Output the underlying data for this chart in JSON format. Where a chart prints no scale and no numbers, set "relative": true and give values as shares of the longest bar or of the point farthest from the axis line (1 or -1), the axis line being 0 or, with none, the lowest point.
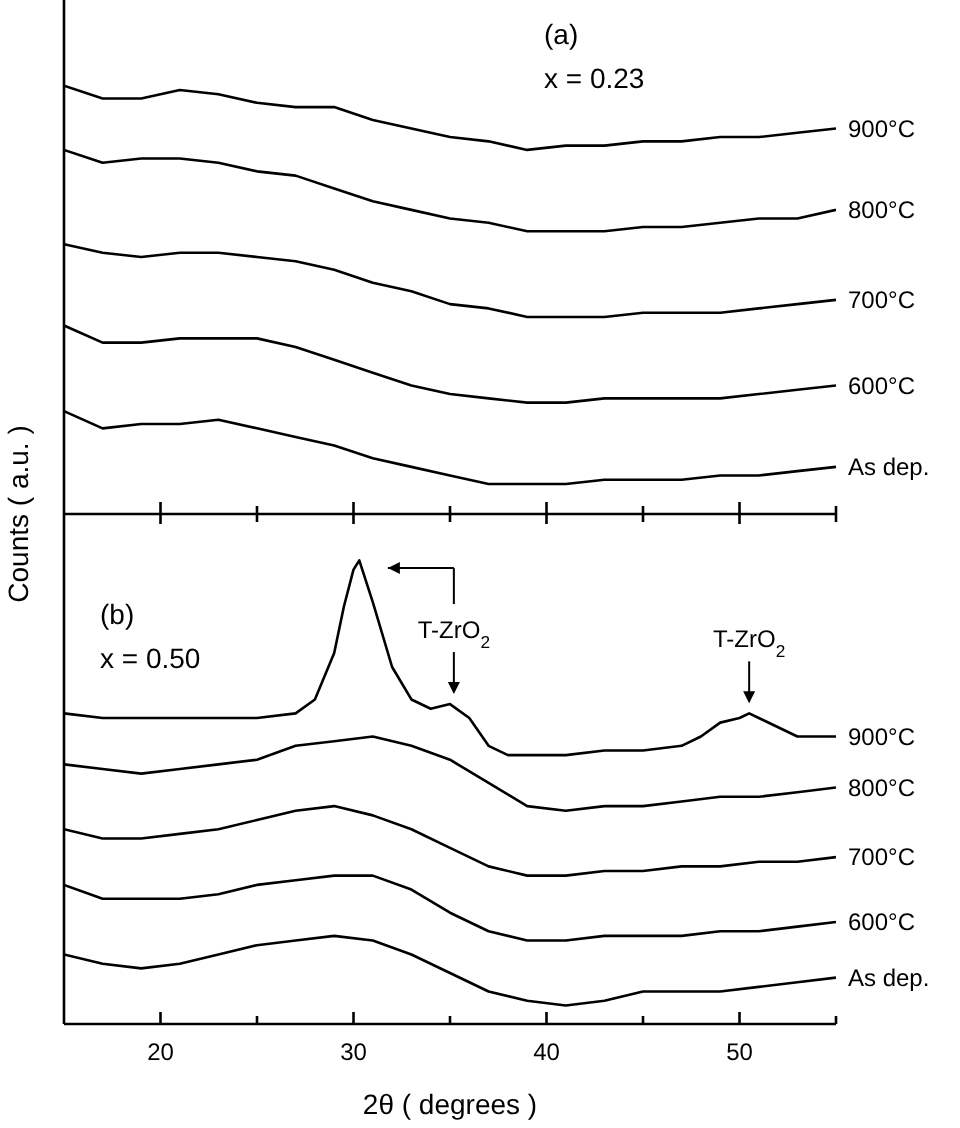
{
  "chart_data": [
    {
      "type": "line",
      "relative": true,
      "annotations": [
        "(a)",
        "x = 0.23"
      ],
      "xlim": [
        15,
        55
      ],
      "xticks": [
        {
          "value": 20,
          "label": null
        },
        {
          "value": 25,
          "label": null
        },
        {
          "value": 30,
          "label": null
        },
        {
          "value": 35,
          "label": null
        },
        {
          "value": 40,
          "label": null
        },
        {
          "value": 45,
          "label": null
        },
        {
          "value": 50,
          "label": null
        },
        {
          "value": 55,
          "label": null
        }
      ],
      "tick_labels": false,
      "x": [
        15,
        17,
        19,
        21,
        23,
        25,
        27,
        29,
        31,
        33,
        35,
        37,
        39,
        41,
        43,
        45,
        47,
        49,
        51,
        53,
        55
      ],
      "series": [
        {
          "name": "900°C",
          "color": "#000000",
          "values": [
            1.0,
            0.97,
            0.97,
            0.99,
            0.98,
            0.96,
            0.95,
            0.95,
            0.92,
            0.9,
            0.88,
            0.87,
            0.85,
            0.86,
            0.86,
            0.87,
            0.87,
            0.88,
            0.88,
            0.89,
            0.9
          ]
        },
        {
          "name": "800°C",
          "color": "#000000",
          "values": [
            0.85,
            0.82,
            0.83,
            0.83,
            0.82,
            0.8,
            0.79,
            0.76,
            0.73,
            0.71,
            0.69,
            0.68,
            0.66,
            0.66,
            0.66,
            0.67,
            0.67,
            0.68,
            0.69,
            0.69,
            0.71
          ]
        },
        {
          "name": "700°C",
          "color": "#000000",
          "values": [
            0.63,
            0.61,
            0.6,
            0.61,
            0.61,
            0.6,
            0.59,
            0.57,
            0.54,
            0.52,
            0.49,
            0.48,
            0.46,
            0.46,
            0.46,
            0.47,
            0.47,
            0.47,
            0.48,
            0.49,
            0.5
          ]
        },
        {
          "name": "600°C",
          "color": "#000000",
          "values": [
            0.44,
            0.4,
            0.4,
            0.41,
            0.41,
            0.41,
            0.39,
            0.36,
            0.33,
            0.3,
            0.28,
            0.27,
            0.26,
            0.26,
            0.27,
            0.27,
            0.27,
            0.27,
            0.28,
            0.29,
            0.3
          ]
        },
        {
          "name": "As dep.",
          "color": "#000000",
          "values": [
            0.24,
            0.2,
            0.21,
            0.21,
            0.22,
            0.2,
            0.18,
            0.16,
            0.13,
            0.11,
            0.09,
            0.07,
            0.07,
            0.07,
            0.08,
            0.08,
            0.08,
            0.09,
            0.09,
            0.1,
            0.11
          ]
        }
      ]
    },
    {
      "type": "line",
      "relative": true,
      "xlabel": "2θ ( degrees )",
      "ylabel": "Counts  ( a.u. )",
      "annotations": [
        "(b)",
        "x = 0.50",
        {
          "text": "T-ZrO$_{2}$",
          "x": 35.2,
          "y": 0.69
        },
        {
          "text": "T-ZrO$_{2}$",
          "x": 50.5,
          "y": 0.67
        }
      ],
      "xlim": [
        15,
        55
      ],
      "xticks": [
        20,
        {
          "value": 25,
          "label": null
        },
        30,
        {
          "value": 35,
          "label": null
        },
        40,
        {
          "value": 45,
          "label": null
        },
        50,
        {
          "value": 55,
          "label": null
        }
      ],
      "tick_labels": "x",
      "x": [
        15,
        17,
        19,
        21,
        23,
        25,
        27,
        29,
        31,
        33,
        35,
        37,
        39,
        41,
        43,
        45,
        47,
        49,
        51,
        53,
        55
      ],
      "series": [
        {
          "name": "900°C",
          "color": "#000000",
          "x": [
            15,
            17,
            19,
            21,
            23,
            25,
            27,
            28,
            29,
            29.5,
            30,
            30.3,
            31,
            32,
            33,
            34,
            35,
            36,
            37,
            38,
            39,
            41,
            43,
            45,
            47,
            48,
            49,
            50,
            50.5,
            51,
            52,
            53,
            55
          ],
          "values": [
            0.67,
            0.66,
            0.66,
            0.66,
            0.66,
            0.66,
            0.67,
            0.7,
            0.8,
            0.9,
            0.98,
            1.0,
            0.91,
            0.77,
            0.7,
            0.68,
            0.69,
            0.66,
            0.6,
            0.58,
            0.58,
            0.58,
            0.59,
            0.59,
            0.6,
            0.62,
            0.65,
            0.66,
            0.67,
            0.66,
            0.64,
            0.62,
            0.62
          ]
        },
        {
          "name": "800°C",
          "color": "#000000",
          "values": [
            0.56,
            0.55,
            0.54,
            0.55,
            0.56,
            0.57,
            0.6,
            0.61,
            0.62,
            0.6,
            0.57,
            0.52,
            0.47,
            0.46,
            0.47,
            0.47,
            0.48,
            0.49,
            0.49,
            0.5,
            0.51
          ]
        },
        {
          "name": "700°C",
          "color": "#000000",
          "values": [
            0.42,
            0.4,
            0.4,
            0.41,
            0.42,
            0.44,
            0.46,
            0.47,
            0.45,
            0.42,
            0.38,
            0.34,
            0.32,
            0.32,
            0.33,
            0.33,
            0.34,
            0.34,
            0.35,
            0.35,
            0.36
          ]
        },
        {
          "name": "600°C",
          "color": "#000000",
          "values": [
            0.3,
            0.27,
            0.27,
            0.27,
            0.28,
            0.3,
            0.31,
            0.32,
            0.32,
            0.29,
            0.24,
            0.2,
            0.18,
            0.18,
            0.19,
            0.19,
            0.19,
            0.2,
            0.2,
            0.21,
            0.22
          ]
        },
        {
          "name": "As dep.",
          "color": "#000000",
          "values": [
            0.15,
            0.13,
            0.12,
            0.13,
            0.15,
            0.17,
            0.18,
            0.19,
            0.18,
            0.15,
            0.11,
            0.07,
            0.05,
            0.04,
            0.05,
            0.07,
            0.07,
            0.07,
            0.08,
            0.09,
            0.1
          ]
        }
      ]
    }
  ]
}
